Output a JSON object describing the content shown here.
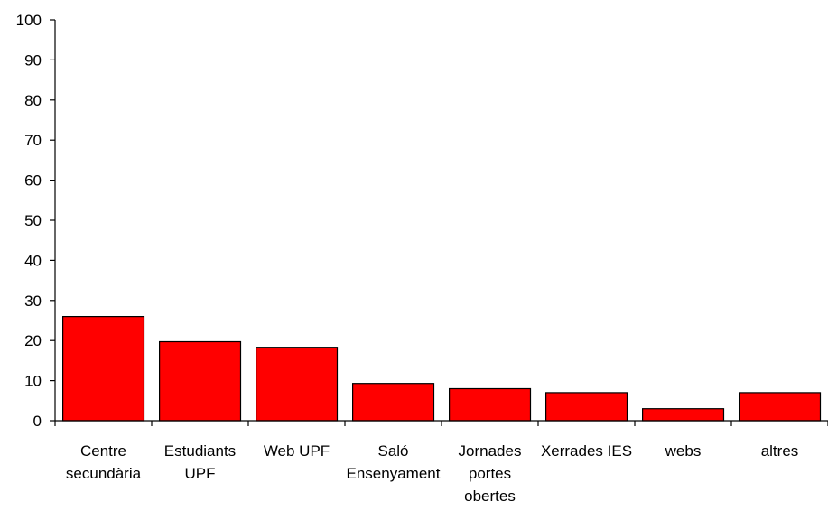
{
  "chart_data": {
    "type": "bar",
    "categories": [
      [
        "Centre",
        "secundària"
      ],
      [
        "Estudiants",
        "UPF"
      ],
      [
        "Web UPF"
      ],
      [
        "Saló",
        "Ensenyament"
      ],
      [
        "Jornades",
        "portes",
        "obertes"
      ],
      [
        "Xerrades IES"
      ],
      [
        "webs"
      ],
      [
        "altres"
      ]
    ],
    "values": [
      26,
      19.7,
      18.3,
      9.3,
      8,
      7,
      3,
      7
    ],
    "ylim": [
      0,
      100
    ],
    "yticks": [
      0,
      10,
      20,
      30,
      40,
      50,
      60,
      70,
      80,
      90,
      100
    ],
    "bar_color": "#ff0000",
    "grid": false
  }
}
